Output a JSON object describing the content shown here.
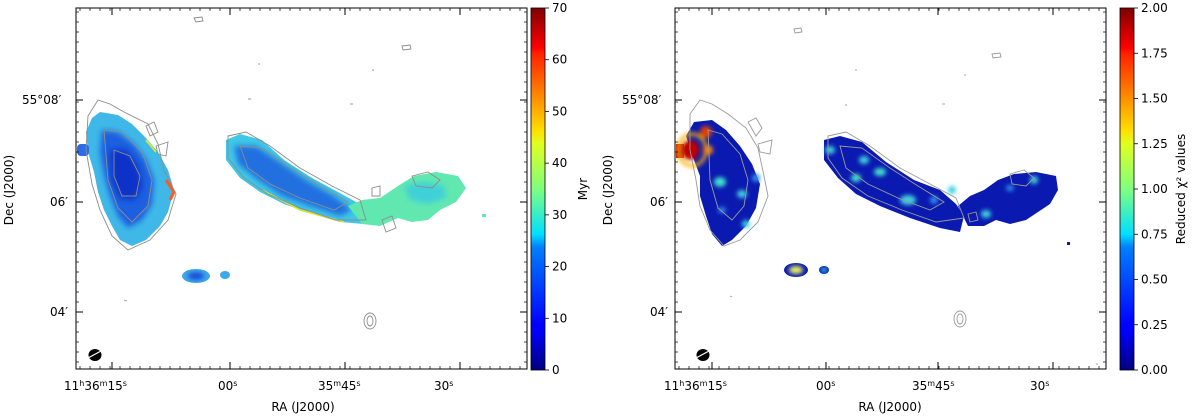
{
  "chart_data": [
    {
      "type": "heatmap",
      "title": "",
      "xlabel": "RA (J2000)",
      "ylabel": "Dec (J2000)",
      "x_ticks": [
        {
          "value": "11:36:15",
          "h": "11",
          "m": "36",
          "s": "15"
        },
        {
          "value": "11:36:00",
          "s": "00"
        },
        {
          "value": "11:35:45",
          "m": "35",
          "s": "45"
        },
        {
          "value": "11:35:30",
          "s": "30"
        }
      ],
      "y_ticks": [
        {
          "value": "55:08",
          "d": "55",
          "m": "08"
        },
        {
          "value": "55:06",
          "m": "06"
        },
        {
          "value": "55:04",
          "m": "04"
        }
      ],
      "colorbar": {
        "label": "Myr",
        "min": 0,
        "max": 70,
        "ticks": [
          "0",
          "10",
          "20",
          "30",
          "40",
          "50",
          "60",
          "70"
        ],
        "colormap": "jet"
      },
      "contour_color": "#8c8c8c",
      "beam": "ellipse, lower-left"
    },
    {
      "type": "heatmap",
      "title": "",
      "xlabel": "RA (J2000)",
      "ylabel": "Dec (J2000)",
      "x_ticks": [
        {
          "value": "11:36:15",
          "h": "11",
          "m": "36",
          "s": "15"
        },
        {
          "value": "11:36:00",
          "s": "00"
        },
        {
          "value": "11:35:45",
          "m": "35",
          "s": "45"
        },
        {
          "value": "11:35:30",
          "s": "30"
        }
      ],
      "y_ticks": [
        {
          "value": "55:08",
          "d": "55",
          "m": "08"
        },
        {
          "value": "55:06",
          "m": "06"
        },
        {
          "value": "55:04",
          "m": "04"
        }
      ],
      "colorbar": {
        "label": "Reduced χ² values",
        "min": 0,
        "max": 2,
        "ticks": [
          "0.00",
          "0.25",
          "0.50",
          "0.75",
          "1.00",
          "1.25",
          "1.50",
          "1.75",
          "2.00"
        ],
        "colormap": "jet"
      },
      "contour_color": "#8c8c8c",
      "beam": "ellipse, lower-left"
    }
  ]
}
